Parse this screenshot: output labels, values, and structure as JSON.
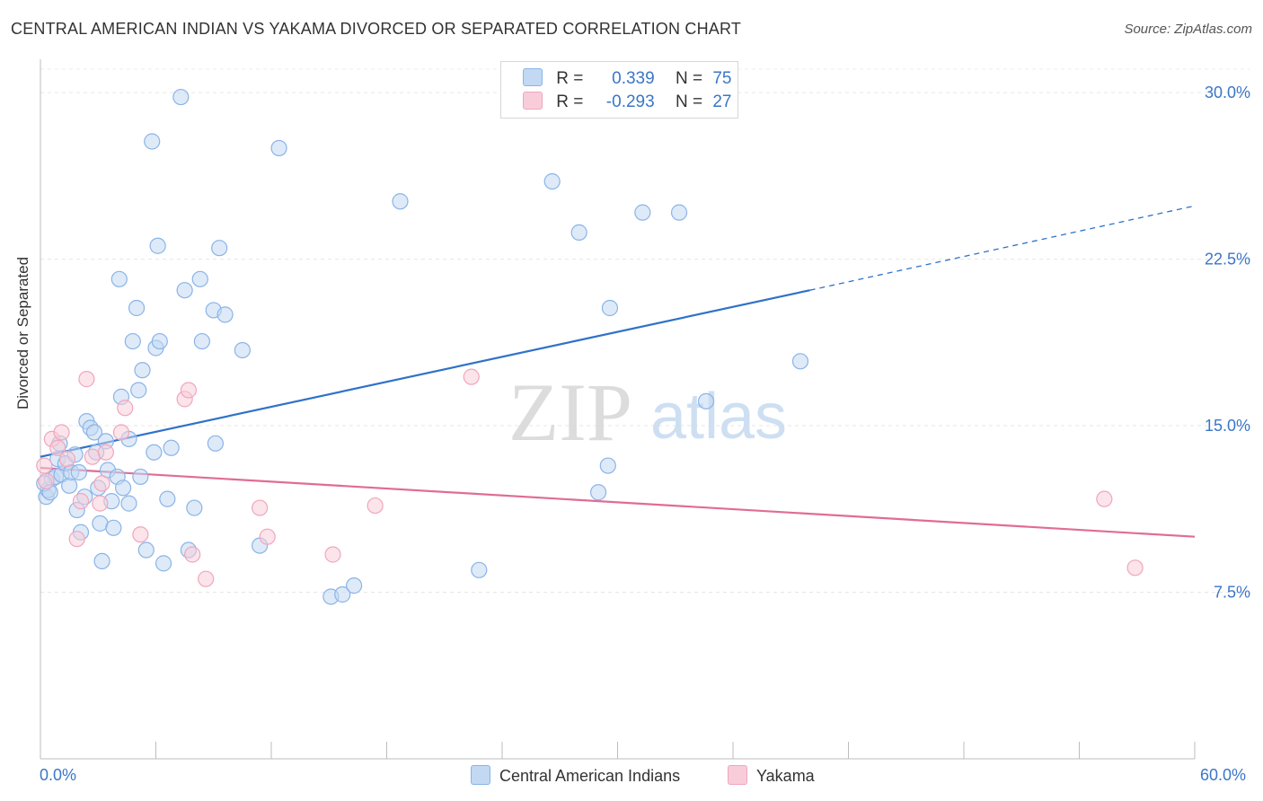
{
  "header": {
    "title": "CENTRAL AMERICAN INDIAN VS YAKAMA DIVORCED OR SEPARATED CORRELATION CHART",
    "source": "Source: ZipAtlas.com"
  },
  "watermark": {
    "zip": "ZIP",
    "atlas": "atlas"
  },
  "legend": {
    "r_label": "R =",
    "n_label": "N =",
    "rows": [
      {
        "r": "0.339",
        "n": "75"
      },
      {
        "r": "-0.293",
        "n": "27"
      }
    ]
  },
  "chart_data": {
    "type": "scatter",
    "ylabel": "Divorced or Separated",
    "xlim": [
      0,
      60
    ],
    "ylim": [
      0,
      31.5
    ],
    "x_tick_labels": [
      "0.0%",
      "60.0%"
    ],
    "y_ticks": [
      7.5,
      15.0,
      22.5,
      30.0
    ],
    "y_tick_labels": [
      "7.5%",
      "15.0%",
      "22.5%",
      "30.0%"
    ],
    "grid": true,
    "series": [
      {
        "name": "Central American Indians",
        "color": "#8ab4e8",
        "fill": "#c2d8f3",
        "line_color": "#2f72c9",
        "trend": {
          "x0": 0,
          "y0": 13.6,
          "x1": 40,
          "y1": 21.1,
          "dash_to_x": 60,
          "dash_to_y": 24.9
        },
        "points": [
          [
            0.3,
            11.8
          ],
          [
            0.4,
            12.1
          ],
          [
            0.6,
            12.6
          ],
          [
            0.8,
            12.7
          ],
          [
            0.9,
            13.5
          ],
          [
            1.0,
            14.2
          ],
          [
            1.1,
            12.8
          ],
          [
            1.3,
            13.3
          ],
          [
            1.5,
            12.3
          ],
          [
            1.6,
            12.9
          ],
          [
            1.8,
            13.7
          ],
          [
            1.9,
            11.2
          ],
          [
            2.0,
            12.9
          ],
          [
            2.1,
            10.2
          ],
          [
            2.3,
            11.8
          ],
          [
            2.4,
            15.2
          ],
          [
            2.6,
            14.9
          ],
          [
            2.8,
            14.7
          ],
          [
            2.9,
            13.8
          ],
          [
            3.0,
            12.2
          ],
          [
            3.1,
            10.6
          ],
          [
            3.2,
            8.9
          ],
          [
            3.4,
            14.3
          ],
          [
            3.5,
            13.0
          ],
          [
            3.7,
            11.6
          ],
          [
            3.8,
            10.4
          ],
          [
            4.0,
            12.7
          ],
          [
            4.1,
            21.6
          ],
          [
            4.2,
            16.3
          ],
          [
            4.3,
            12.2
          ],
          [
            4.6,
            11.5
          ],
          [
            4.6,
            14.4
          ],
          [
            4.8,
            18.8
          ],
          [
            5.0,
            20.3
          ],
          [
            5.1,
            16.6
          ],
          [
            5.2,
            12.7
          ],
          [
            5.3,
            17.5
          ],
          [
            5.5,
            9.4
          ],
          [
            5.8,
            27.8
          ],
          [
            5.9,
            13.8
          ],
          [
            6.0,
            18.5
          ],
          [
            6.1,
            23.1
          ],
          [
            6.2,
            18.8
          ],
          [
            6.4,
            8.8
          ],
          [
            6.6,
            11.7
          ],
          [
            6.8,
            14.0
          ],
          [
            7.3,
            29.8
          ],
          [
            7.5,
            21.1
          ],
          [
            7.7,
            9.4
          ],
          [
            8.0,
            11.3
          ],
          [
            8.3,
            21.6
          ],
          [
            8.4,
            18.8
          ],
          [
            9.0,
            20.2
          ],
          [
            9.1,
            14.2
          ],
          [
            9.3,
            23.0
          ],
          [
            9.6,
            20.0
          ],
          [
            10.5,
            18.4
          ],
          [
            11.4,
            9.6
          ],
          [
            12.4,
            27.5
          ],
          [
            15.1,
            7.3
          ],
          [
            15.7,
            7.4
          ],
          [
            16.3,
            7.8
          ],
          [
            18.7,
            25.1
          ],
          [
            22.8,
            8.5
          ],
          [
            26.6,
            26.0
          ],
          [
            28.0,
            23.7
          ],
          [
            29.0,
            12.0
          ],
          [
            29.5,
            13.2
          ],
          [
            29.6,
            20.3
          ],
          [
            31.3,
            24.6
          ],
          [
            33.2,
            24.6
          ],
          [
            34.6,
            16.1
          ],
          [
            39.5,
            17.9
          ],
          [
            0.2,
            12.4
          ],
          [
            0.5,
            12.0
          ]
        ]
      },
      {
        "name": "Yakama",
        "color": "#f0a6be",
        "fill": "#f8cdd9",
        "line_color": "#e06c96",
        "trend": {
          "x0": 0,
          "y0": 13.1,
          "x1": 60,
          "y1": 10.0
        },
        "points": [
          [
            0.3,
            12.5
          ],
          [
            0.6,
            14.4
          ],
          [
            0.9,
            14.0
          ],
          [
            1.1,
            14.7
          ],
          [
            1.4,
            13.5
          ],
          [
            1.9,
            9.9
          ],
          [
            2.1,
            11.6
          ],
          [
            2.4,
            17.1
          ],
          [
            2.7,
            13.6
          ],
          [
            3.1,
            11.5
          ],
          [
            3.2,
            12.4
          ],
          [
            3.4,
            13.8
          ],
          [
            4.2,
            14.7
          ],
          [
            4.4,
            15.8
          ],
          [
            5.2,
            10.1
          ],
          [
            7.5,
            16.2
          ],
          [
            7.7,
            16.6
          ],
          [
            7.9,
            9.2
          ],
          [
            8.6,
            8.1
          ],
          [
            11.4,
            11.3
          ],
          [
            11.8,
            10.0
          ],
          [
            15.2,
            9.2
          ],
          [
            17.4,
            11.4
          ],
          [
            22.4,
            17.2
          ],
          [
            55.3,
            11.7
          ],
          [
            56.9,
            8.6
          ],
          [
            0.2,
            13.2
          ]
        ]
      }
    ]
  }
}
